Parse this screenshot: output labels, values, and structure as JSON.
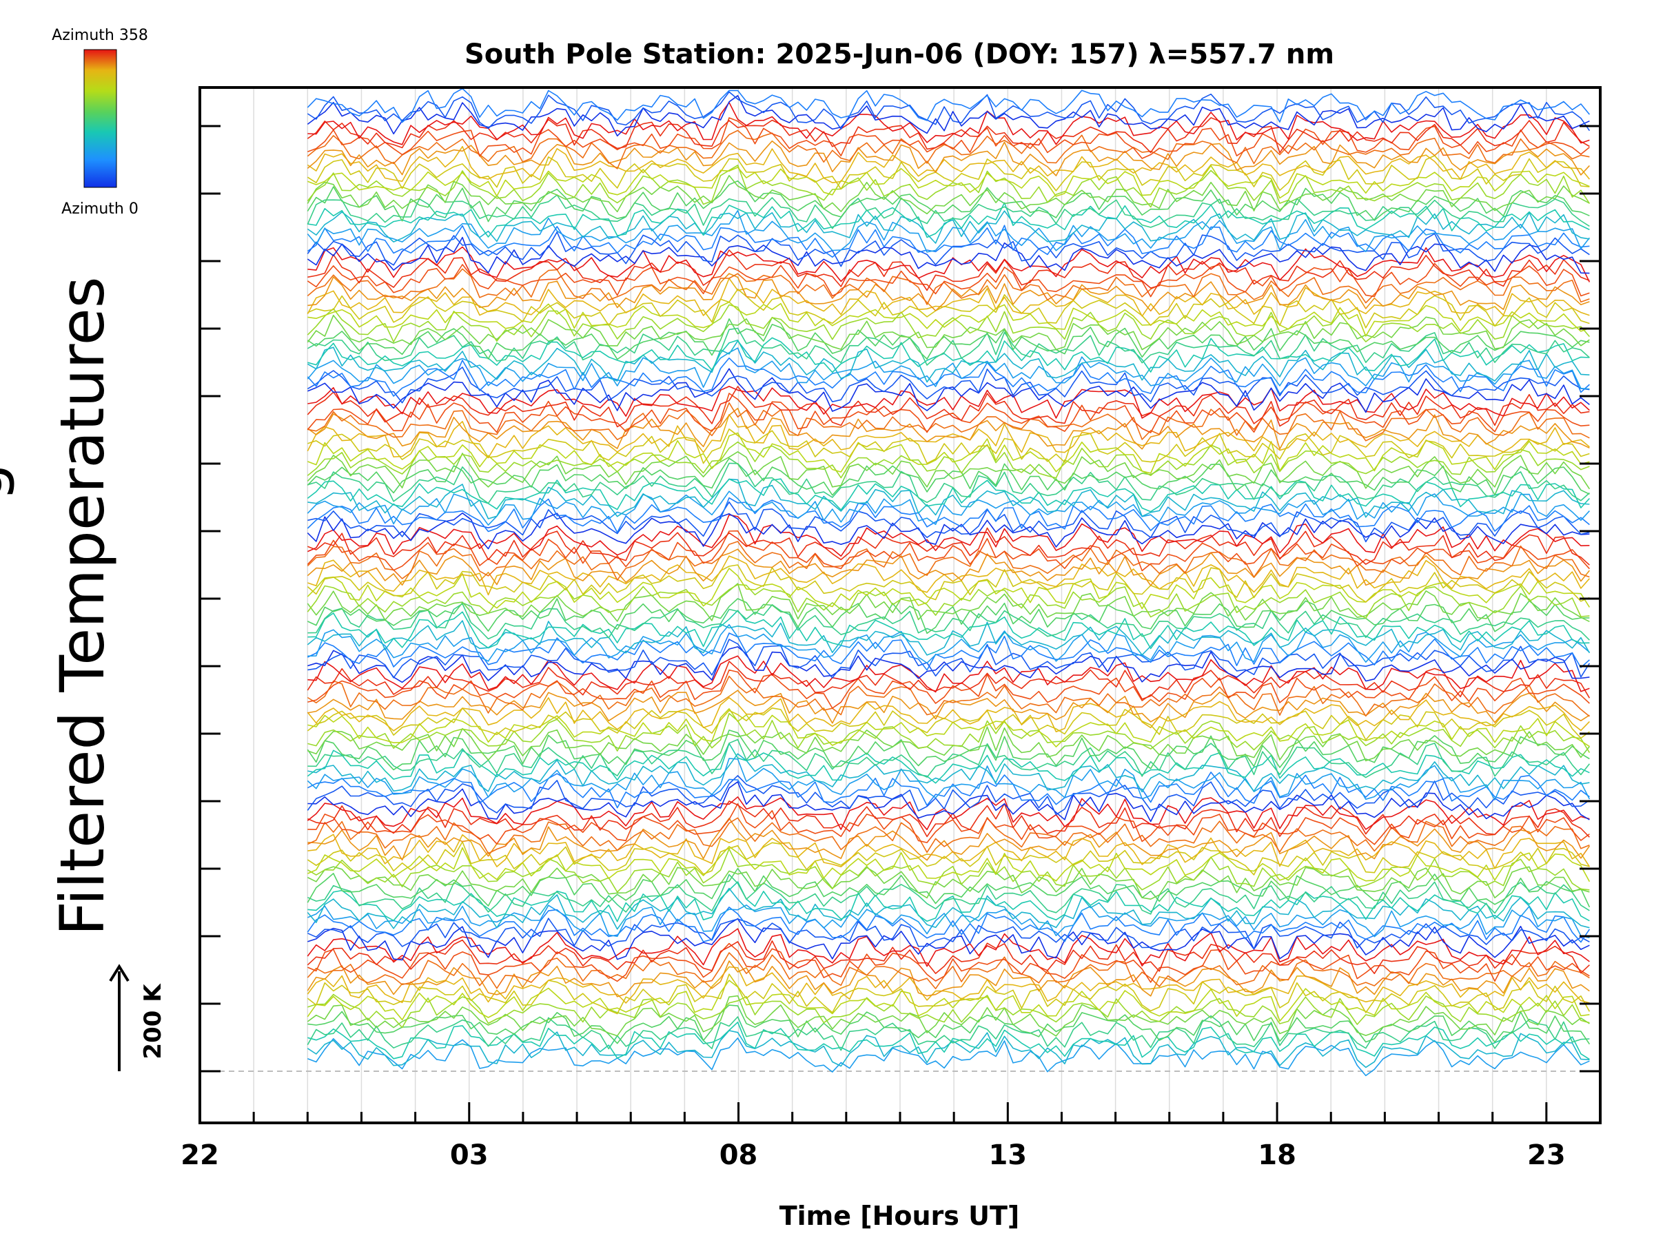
{
  "chart_data": {
    "type": "line",
    "title": "South Pole Station: 2025-Jun-06 (DOY: 157) λ=557.7 nm",
    "xlabel": "Time [Hours UT]",
    "ylabel": "Filtered Temperatures",
    "ylabel_clipped": "g",
    "x_ticks": [
      "22",
      "03",
      "08",
      "13",
      "18",
      "23"
    ],
    "x_range_hours_from_22UT": [
      0,
      26
    ],
    "data_start_hour_from_22UT": 2,
    "data_end_hour_from_22UT": 25.8,
    "scale_bar": {
      "label": "200 K",
      "value_K": 200
    },
    "legend": {
      "top_label": "Azimuth 358",
      "bottom_label": "Azimuth 0",
      "azimuth_min": 0,
      "azimuth_max": 358
    },
    "groups": 7,
    "traces_per_group": 18,
    "colormap": [
      "#1030e6",
      "#1e90ff",
      "#19c8b4",
      "#5ad25a",
      "#b4dc19",
      "#e6b414",
      "#f05a14",
      "#e61414"
    ],
    "baseline_style": "dashed-gray"
  }
}
